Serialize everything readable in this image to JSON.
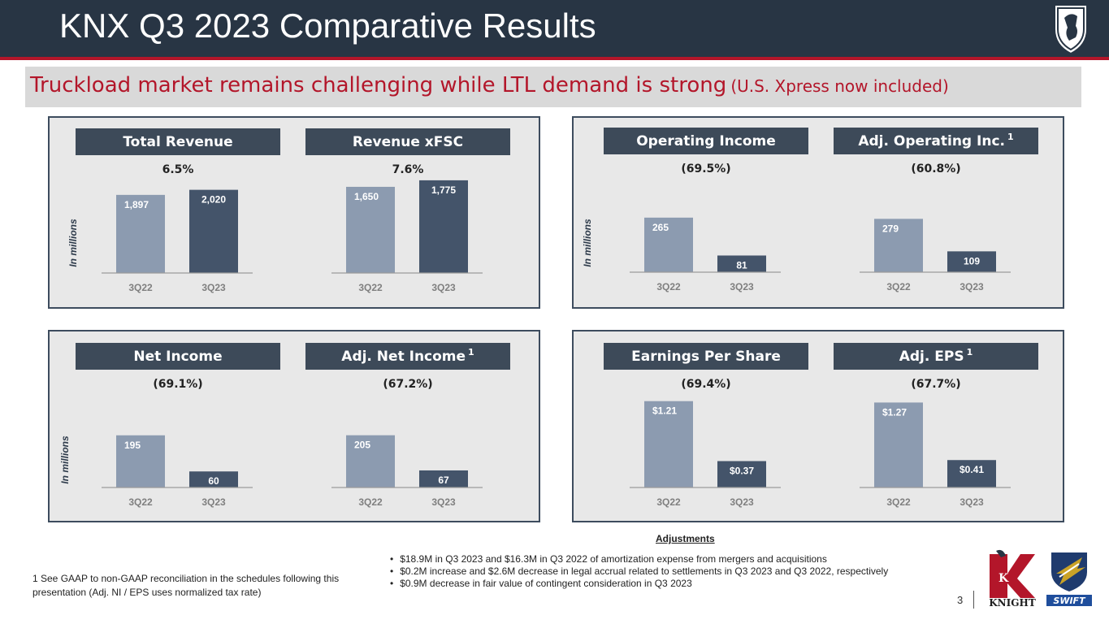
{
  "header": {
    "title": "KNX Q3 2023 Comparative Results"
  },
  "subtitle": {
    "main": "Truckload market remains challenging while LTL demand is strong",
    "note": "(U.S. Xpress now included)"
  },
  "y_axis_label": "In millions",
  "chart_data": [
    {
      "type": "bar",
      "title": "Total Revenue",
      "footnote_mark": "",
      "change": "6.5%",
      "categories": [
        "3Q22",
        "3Q23"
      ],
      "values": [
        1897,
        2020
      ],
      "labels": [
        "1,897",
        "2,020"
      ],
      "ylim": [
        0,
        2600
      ]
    },
    {
      "type": "bar",
      "title": "Revenue xFSC",
      "footnote_mark": "",
      "change": "7.6%",
      "categories": [
        "3Q22",
        "3Q23"
      ],
      "values": [
        1650,
        1775
      ],
      "labels": [
        "1,650",
        "1,775"
      ],
      "ylim": [
        0,
        2050
      ]
    },
    {
      "type": "bar",
      "title": "Operating Income",
      "footnote_mark": "",
      "change": "(69.5%)",
      "categories": [
        "3Q22",
        "3Q23"
      ],
      "values": [
        265,
        81
      ],
      "labels": [
        "265",
        "81"
      ],
      "ylim": [
        0,
        520
      ]
    },
    {
      "type": "bar",
      "title": "Adj. Operating Inc.",
      "footnote_mark": "1",
      "change": "(60.8%)",
      "categories": [
        "3Q22",
        "3Q23"
      ],
      "values": [
        279,
        109
      ],
      "labels": [
        "279",
        "109"
      ],
      "ylim": [
        0,
        560
      ]
    },
    {
      "type": "bar",
      "title": "Net Income",
      "footnote_mark": "",
      "change": "(69.1%)",
      "categories": [
        "3Q22",
        "3Q23"
      ],
      "values": [
        195,
        60
      ],
      "labels": [
        "195",
        "60"
      ],
      "ylim": [
        0,
        400
      ]
    },
    {
      "type": "bar",
      "title": "Adj. Net Income",
      "footnote_mark": "1",
      "change": "(67.2%)",
      "categories": [
        "3Q22",
        "3Q23"
      ],
      "values": [
        205,
        67
      ],
      "labels": [
        "205",
        "67"
      ],
      "ylim": [
        0,
        420
      ]
    },
    {
      "type": "bar",
      "title": "Earnings Per Share",
      "footnote_mark": "",
      "change": "(69.4%)",
      "categories": [
        "3Q22",
        "3Q23"
      ],
      "values": [
        1.21,
        0.37
      ],
      "labels": [
        "$1.21",
        "$0.37"
      ],
      "ylim": [
        0,
        1.5
      ]
    },
    {
      "type": "bar",
      "title": "Adj. EPS",
      "footnote_mark": "1",
      "change": "(67.7%)",
      "categories": [
        "3Q22",
        "3Q23"
      ],
      "values": [
        1.27,
        0.41
      ],
      "labels": [
        "$1.27",
        "$0.41"
      ],
      "ylim": [
        0,
        1.6
      ]
    }
  ],
  "colors": {
    "bar_prior": "#8c9bb0",
    "bar_current": "#44546a",
    "header_fill": "#3d4a59",
    "accent_red": "#b3162a"
  },
  "footnote": "1   See GAAP to non-GAAP reconciliation in the schedules following this presentation (Adj. NI / EPS uses normalized tax rate)",
  "adjustments": {
    "title": "Adjustments",
    "items": [
      "$18.9M in Q3 2023 and $16.3M in Q3 2022 of amortization expense from mergers and acquisitions",
      "$0.2M increase and $2.6M decrease in legal accrual related to settlements in Q3 2023 and Q3 2022, respectively",
      "$0.9M decrease in fair value of contingent consideration in Q3 2023"
    ]
  },
  "page_number": "3",
  "logos": {
    "knight_text": "KNIGHT",
    "knight_letter": "K",
    "swift_text": "SWIFT"
  }
}
